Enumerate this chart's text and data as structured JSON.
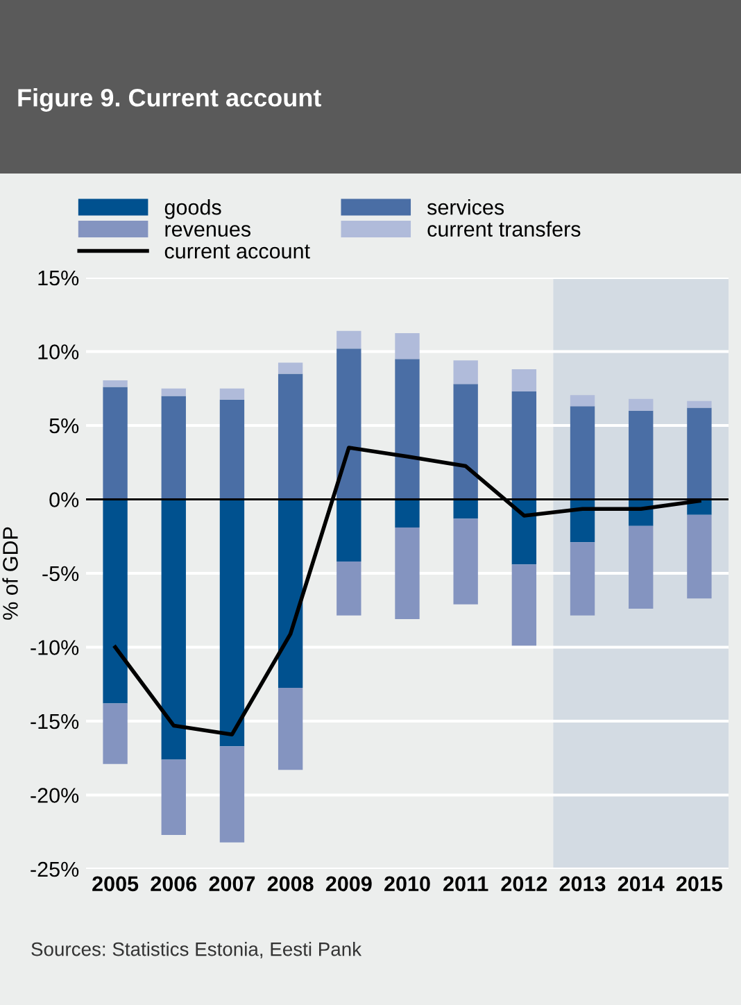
{
  "chart_data": {
    "type": "bar",
    "title": "Figure 9. Current account",
    "ylabel": "% of GDP",
    "categories": [
      "2005",
      "2006",
      "2007",
      "2008",
      "2009",
      "2010",
      "2011",
      "2012",
      "2013",
      "2014",
      "2015"
    ],
    "stacked": true,
    "series": [
      {
        "name": "goods",
        "color": "#00518f",
        "values": [
          -13.8,
          -17.6,
          -16.7,
          -12.75,
          -4.2,
          -1.9,
          -1.3,
          -4.4,
          -2.9,
          -1.8,
          -1.05
        ]
      },
      {
        "name": "services",
        "color": "#4a6ea5",
        "values": [
          7.6,
          7.0,
          6.75,
          8.5,
          10.2,
          9.5,
          7.8,
          7.3,
          6.3,
          6.0,
          6.2
        ]
      },
      {
        "name": "revenues",
        "color": "#8494c0",
        "values": [
          -4.1,
          -5.1,
          -6.5,
          -5.55,
          -3.65,
          -6.2,
          -5.8,
          -5.5,
          -4.95,
          -5.6,
          -5.65
        ]
      },
      {
        "name": "current transfers",
        "color": "#b0bbda",
        "values": [
          0.45,
          0.5,
          0.75,
          0.75,
          1.2,
          1.75,
          1.6,
          1.5,
          0.75,
          0.8,
          0.45
        ]
      },
      {
        "name": "current account",
        "type": "line",
        "color": "#000000",
        "values": [
          -10.0,
          -15.3,
          -15.9,
          -9.1,
          3.5,
          2.9,
          2.25,
          -1.1,
          -0.65,
          -0.65,
          -0.1
        ]
      }
    ],
    "ylim": [
      -25,
      15
    ],
    "yticks": [
      {
        "value": -25,
        "label": "-25%"
      },
      {
        "value": -20,
        "label": "-20%"
      },
      {
        "value": -15,
        "label": "-15%"
      },
      {
        "value": -10,
        "label": "-10%"
      },
      {
        "value": -5,
        "label": "-5%"
      },
      {
        "value": 0,
        "label": "0%"
      },
      {
        "value": 5,
        "label": "5%"
      },
      {
        "value": 10,
        "label": "10%"
      },
      {
        "value": 15,
        "label": "15%"
      }
    ],
    "grid": "y",
    "legend": "top",
    "ref_lines": [
      {
        "axis": "y",
        "value": 0,
        "color": "#000000"
      }
    ],
    "bands": [
      {
        "axis": "x",
        "from": "2013",
        "to": "2015",
        "color": "#d3dbe3"
      }
    ],
    "annotations": [
      "Sources: Statistics Estonia, Eesti Pank"
    ]
  }
}
